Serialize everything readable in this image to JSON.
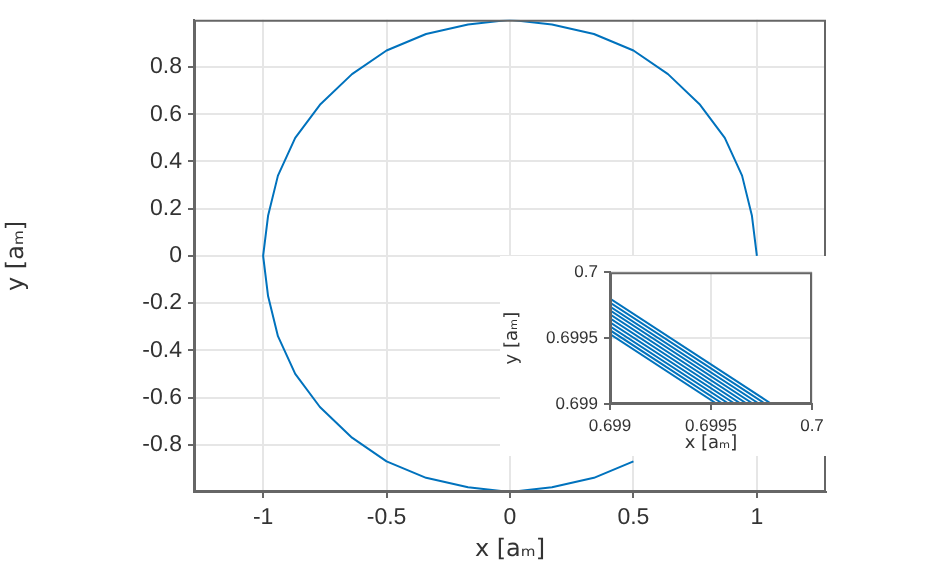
{
  "chart_data": [
    {
      "type": "line",
      "xlabel": "x [aₘ]",
      "ylabel": "y [aₘ]",
      "xlim": [
        -1.28,
        1.28
      ],
      "ylim": [
        -1,
        1
      ],
      "xticks": [
        -1,
        -0.5,
        0,
        0.5,
        1
      ],
      "yticks": [
        -0.8,
        -0.6,
        -0.4,
        -0.2,
        0,
        0.2,
        0.4,
        0.6,
        0.8
      ],
      "grid": true,
      "series": [
        {
          "color": "#0072bd",
          "x": [
            1,
            0.98,
            0.94,
            0.87,
            0.77,
            0.64,
            0.5,
            0.34,
            0.17,
            0,
            -0.17,
            -0.34,
            -0.5,
            -0.64,
            -0.77,
            -0.87,
            -0.94,
            -0.98,
            -1,
            -0.98,
            -0.94,
            -0.87,
            -0.77,
            -0.64,
            -0.5,
            -0.34,
            -0.17,
            0,
            0.17,
            0.34,
            0.5
          ],
          "values": [
            0,
            0.17,
            0.34,
            0.5,
            0.64,
            0.77,
            0.87,
            0.94,
            0.98,
            1,
            0.98,
            0.94,
            0.87,
            0.77,
            0.64,
            0.5,
            0.34,
            0.17,
            0,
            -0.17,
            -0.34,
            -0.5,
            -0.64,
            -0.77,
            -0.87,
            -0.94,
            -0.98,
            -1,
            -0.98,
            -0.94,
            -0.87
          ]
        }
      ]
    },
    {
      "type": "line",
      "xlabel": "x [aₘ]",
      "ylabel": "y [aₘ]",
      "xlim": [
        0.699,
        0.7
      ],
      "ylim": [
        0.699,
        0.7
      ],
      "xticks": [
        0.699,
        0.6995,
        0.7
      ],
      "yticks": [
        0.699,
        0.6995,
        0.7
      ],
      "grid": true,
      "series": [
        {
          "color": "#0072bd",
          "x": [
            0.699,
            0.6998
          ],
          "values": [
            0.6998,
            0.699
          ]
        },
        {
          "color": "#0072bd",
          "x": [
            0.699,
            0.69977
          ],
          "values": [
            0.69977,
            0.699
          ]
        },
        {
          "color": "#0072bd",
          "x": [
            0.699,
            0.69974
          ],
          "values": [
            0.69974,
            0.699
          ]
        },
        {
          "color": "#0072bd",
          "x": [
            0.699,
            0.69971
          ],
          "values": [
            0.69971,
            0.699
          ]
        },
        {
          "color": "#0072bd",
          "x": [
            0.699,
            0.69968
          ],
          "values": [
            0.69968,
            0.699
          ]
        },
        {
          "color": "#0072bd",
          "x": [
            0.699,
            0.69965
          ],
          "values": [
            0.69965,
            0.699
          ]
        },
        {
          "color": "#0072bd",
          "x": [
            0.699,
            0.69962
          ],
          "values": [
            0.69962,
            0.699
          ]
        },
        {
          "color": "#0072bd",
          "x": [
            0.699,
            0.69959
          ],
          "values": [
            0.69959,
            0.699
          ]
        },
        {
          "color": "#0072bd",
          "x": [
            0.699,
            0.69956
          ],
          "values": [
            0.69956,
            0.699
          ]
        },
        {
          "color": "#0072bd",
          "x": [
            0.699,
            0.69953
          ],
          "values": [
            0.69953,
            0.699
          ]
        }
      ]
    }
  ]
}
